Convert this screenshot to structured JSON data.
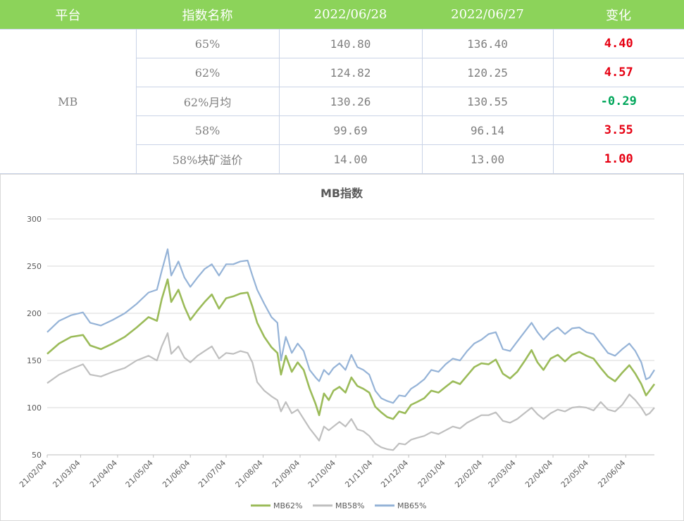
{
  "table": {
    "headers": [
      "平台",
      "指数名称",
      "2022/06/28",
      "2022/06/27",
      "变化"
    ],
    "platform": "MB",
    "rows": [
      {
        "name": "65%",
        "d0628": "140.80",
        "d0627": "136.40",
        "change": "4.40",
        "dir": "up"
      },
      {
        "name": "62%",
        "d0628": "124.82",
        "d0627": "120.25",
        "change": "4.57",
        "dir": "up"
      },
      {
        "name": "62%月均",
        "d0628": "130.26",
        "d0627": "130.55",
        "change": "-0.29",
        "dir": "down"
      },
      {
        "name": "58%",
        "d0628": "99.69",
        "d0627": "96.14",
        "change": "3.55",
        "dir": "up"
      },
      {
        "name": "58%块矿溢价",
        "d0628": "14.00",
        "d0627": "13.00",
        "change": "1.00",
        "dir": "up"
      }
    ],
    "colors": {
      "header_bg": "#8cd35a",
      "up": "#e60012",
      "down": "#00a65a"
    }
  },
  "chart_data": {
    "type": "line",
    "title": "MB指数",
    "xlabel": "",
    "ylabel": "",
    "ylim": [
      50,
      300
    ],
    "yticks": [
      "50",
      "100",
      "150",
      "200",
      "250",
      "300"
    ],
    "x_tick_labels": [
      "21/02/04",
      "21/03/04",
      "21/04/04",
      "21/05/04",
      "21/06/04",
      "21/07/04",
      "21/08/04",
      "21/09/04",
      "21/10/04",
      "21/11/04",
      "21/12/04",
      "22/01/04",
      "22/02/04",
      "22/03/04",
      "22/04/04",
      "22/05/04",
      "22/06/04"
    ],
    "x_ticks_day": [
      0,
      28,
      59,
      89,
      120,
      150,
      181,
      212,
      242,
      273,
      303,
      334,
      365,
      393,
      424,
      454,
      485
    ],
    "x_range_day": [
      0,
      509
    ],
    "grid": true,
    "legend_position": "bottom",
    "series": [
      {
        "name": "MB62%",
        "color": "#9bbb59",
        "points": [
          [
            0,
            157
          ],
          [
            10,
            168
          ],
          [
            20,
            175
          ],
          [
            30,
            177
          ],
          [
            36,
            166
          ],
          [
            45,
            162
          ],
          [
            55,
            168
          ],
          [
            65,
            175
          ],
          [
            75,
            185
          ],
          [
            85,
            196
          ],
          [
            92,
            192
          ],
          [
            96,
            215
          ],
          [
            101,
            236
          ],
          [
            104,
            212
          ],
          [
            110,
            225
          ],
          [
            115,
            207
          ],
          [
            120,
            193
          ],
          [
            126,
            203
          ],
          [
            132,
            212
          ],
          [
            138,
            220
          ],
          [
            144,
            205
          ],
          [
            150,
            216
          ],
          [
            156,
            218
          ],
          [
            162,
            221
          ],
          [
            168,
            222
          ],
          [
            172,
            207
          ],
          [
            176,
            190
          ],
          [
            182,
            175
          ],
          [
            188,
            164
          ],
          [
            193,
            158
          ],
          [
            196,
            135
          ],
          [
            200,
            155
          ],
          [
            205,
            138
          ],
          [
            210,
            148
          ],
          [
            215,
            140
          ],
          [
            220,
            120
          ],
          [
            225,
            104
          ],
          [
            228,
            92
          ],
          [
            232,
            115
          ],
          [
            236,
            108
          ],
          [
            240,
            118
          ],
          [
            245,
            122
          ],
          [
            250,
            116
          ],
          [
            255,
            132
          ],
          [
            260,
            123
          ],
          [
            265,
            120
          ],
          [
            270,
            116
          ],
          [
            275,
            101
          ],
          [
            280,
            95
          ],
          [
            285,
            90
          ],
          [
            290,
            88
          ],
          [
            295,
            96
          ],
          [
            300,
            94
          ],
          [
            305,
            103
          ],
          [
            310,
            106
          ],
          [
            316,
            110
          ],
          [
            322,
            118
          ],
          [
            328,
            116
          ],
          [
            334,
            122
          ],
          [
            340,
            128
          ],
          [
            346,
            125
          ],
          [
            352,
            134
          ],
          [
            358,
            143
          ],
          [
            364,
            147
          ],
          [
            370,
            146
          ],
          [
            376,
            151
          ],
          [
            382,
            136
          ],
          [
            388,
            131
          ],
          [
            394,
            138
          ],
          [
            400,
            149
          ],
          [
            406,
            161
          ],
          [
            411,
            148
          ],
          [
            416,
            140
          ],
          [
            422,
            152
          ],
          [
            428,
            156
          ],
          [
            434,
            149
          ],
          [
            440,
            156
          ],
          [
            446,
            159
          ],
          [
            452,
            155
          ],
          [
            458,
            152
          ],
          [
            464,
            142
          ],
          [
            470,
            133
          ],
          [
            476,
            128
          ],
          [
            482,
            137
          ],
          [
            488,
            145
          ],
          [
            493,
            136
          ],
          [
            498,
            125
          ],
          [
            502,
            113
          ],
          [
            505,
            118
          ],
          [
            509,
            125
          ]
        ]
      },
      {
        "name": "MB58%",
        "color": "#bfbfbf",
        "points": [
          [
            0,
            126
          ],
          [
            10,
            135
          ],
          [
            20,
            141
          ],
          [
            30,
            146
          ],
          [
            36,
            135
          ],
          [
            45,
            133
          ],
          [
            55,
            138
          ],
          [
            65,
            142
          ],
          [
            75,
            150
          ],
          [
            85,
            155
          ],
          [
            92,
            150
          ],
          [
            96,
            165
          ],
          [
            101,
            179
          ],
          [
            104,
            157
          ],
          [
            110,
            165
          ],
          [
            115,
            153
          ],
          [
            120,
            148
          ],
          [
            126,
            155
          ],
          [
            132,
            160
          ],
          [
            138,
            165
          ],
          [
            144,
            152
          ],
          [
            150,
            158
          ],
          [
            156,
            157
          ],
          [
            162,
            160
          ],
          [
            168,
            158
          ],
          [
            172,
            148
          ],
          [
            176,
            127
          ],
          [
            182,
            118
          ],
          [
            188,
            112
          ],
          [
            193,
            108
          ],
          [
            196,
            96
          ],
          [
            200,
            106
          ],
          [
            205,
            94
          ],
          [
            210,
            98
          ],
          [
            215,
            88
          ],
          [
            220,
            78
          ],
          [
            225,
            70
          ],
          [
            228,
            65
          ],
          [
            232,
            80
          ],
          [
            236,
            76
          ],
          [
            240,
            80
          ],
          [
            245,
            85
          ],
          [
            250,
            80
          ],
          [
            255,
            88
          ],
          [
            260,
            77
          ],
          [
            265,
            75
          ],
          [
            270,
            70
          ],
          [
            275,
            62
          ],
          [
            280,
            58
          ],
          [
            285,
            56
          ],
          [
            290,
            55
          ],
          [
            295,
            62
          ],
          [
            300,
            61
          ],
          [
            305,
            66
          ],
          [
            310,
            68
          ],
          [
            316,
            70
          ],
          [
            322,
            74
          ],
          [
            328,
            72
          ],
          [
            334,
            76
          ],
          [
            340,
            80
          ],
          [
            346,
            78
          ],
          [
            352,
            84
          ],
          [
            358,
            88
          ],
          [
            364,
            92
          ],
          [
            370,
            92
          ],
          [
            376,
            95
          ],
          [
            382,
            86
          ],
          [
            388,
            84
          ],
          [
            394,
            88
          ],
          [
            400,
            94
          ],
          [
            406,
            100
          ],
          [
            411,
            93
          ],
          [
            416,
            88
          ],
          [
            422,
            94
          ],
          [
            428,
            98
          ],
          [
            434,
            96
          ],
          [
            440,
            100
          ],
          [
            446,
            101
          ],
          [
            452,
            100
          ],
          [
            458,
            97
          ],
          [
            464,
            106
          ],
          [
            470,
            98
          ],
          [
            476,
            96
          ],
          [
            482,
            103
          ],
          [
            488,
            114
          ],
          [
            493,
            108
          ],
          [
            498,
            100
          ],
          [
            502,
            92
          ],
          [
            505,
            94
          ],
          [
            509,
            100
          ]
        ]
      },
      {
        "name": "MB65%",
        "color": "#95b3d7",
        "points": [
          [
            0,
            180
          ],
          [
            10,
            192
          ],
          [
            20,
            198
          ],
          [
            30,
            201
          ],
          [
            36,
            190
          ],
          [
            45,
            187
          ],
          [
            55,
            193
          ],
          [
            65,
            200
          ],
          [
            75,
            210
          ],
          [
            85,
            222
          ],
          [
            92,
            225
          ],
          [
            96,
            245
          ],
          [
            101,
            268
          ],
          [
            104,
            240
          ],
          [
            110,
            255
          ],
          [
            115,
            238
          ],
          [
            120,
            228
          ],
          [
            126,
            238
          ],
          [
            132,
            247
          ],
          [
            138,
            252
          ],
          [
            144,
            240
          ],
          [
            150,
            252
          ],
          [
            156,
            252
          ],
          [
            162,
            255
          ],
          [
            168,
            256
          ],
          [
            172,
            240
          ],
          [
            176,
            225
          ],
          [
            182,
            210
          ],
          [
            188,
            196
          ],
          [
            193,
            190
          ],
          [
            196,
            150
          ],
          [
            200,
            175
          ],
          [
            205,
            158
          ],
          [
            210,
            168
          ],
          [
            215,
            160
          ],
          [
            220,
            140
          ],
          [
            225,
            132
          ],
          [
            228,
            128
          ],
          [
            232,
            140
          ],
          [
            236,
            135
          ],
          [
            240,
            142
          ],
          [
            245,
            147
          ],
          [
            250,
            140
          ],
          [
            255,
            156
          ],
          [
            260,
            143
          ],
          [
            265,
            140
          ],
          [
            270,
            135
          ],
          [
            275,
            118
          ],
          [
            280,
            110
          ],
          [
            285,
            107
          ],
          [
            290,
            105
          ],
          [
            295,
            113
          ],
          [
            300,
            112
          ],
          [
            305,
            120
          ],
          [
            310,
            124
          ],
          [
            316,
            130
          ],
          [
            322,
            140
          ],
          [
            328,
            138
          ],
          [
            334,
            146
          ],
          [
            340,
            152
          ],
          [
            346,
            150
          ],
          [
            352,
            160
          ],
          [
            358,
            168
          ],
          [
            364,
            172
          ],
          [
            370,
            178
          ],
          [
            376,
            180
          ],
          [
            382,
            162
          ],
          [
            388,
            160
          ],
          [
            394,
            170
          ],
          [
            400,
            180
          ],
          [
            406,
            190
          ],
          [
            411,
            180
          ],
          [
            416,
            172
          ],
          [
            422,
            180
          ],
          [
            428,
            185
          ],
          [
            434,
            178
          ],
          [
            440,
            184
          ],
          [
            446,
            185
          ],
          [
            452,
            180
          ],
          [
            458,
            178
          ],
          [
            464,
            168
          ],
          [
            470,
            158
          ],
          [
            476,
            155
          ],
          [
            482,
            162
          ],
          [
            488,
            168
          ],
          [
            493,
            160
          ],
          [
            498,
            148
          ],
          [
            502,
            130
          ],
          [
            505,
            132
          ],
          [
            509,
            140
          ]
        ]
      }
    ]
  }
}
